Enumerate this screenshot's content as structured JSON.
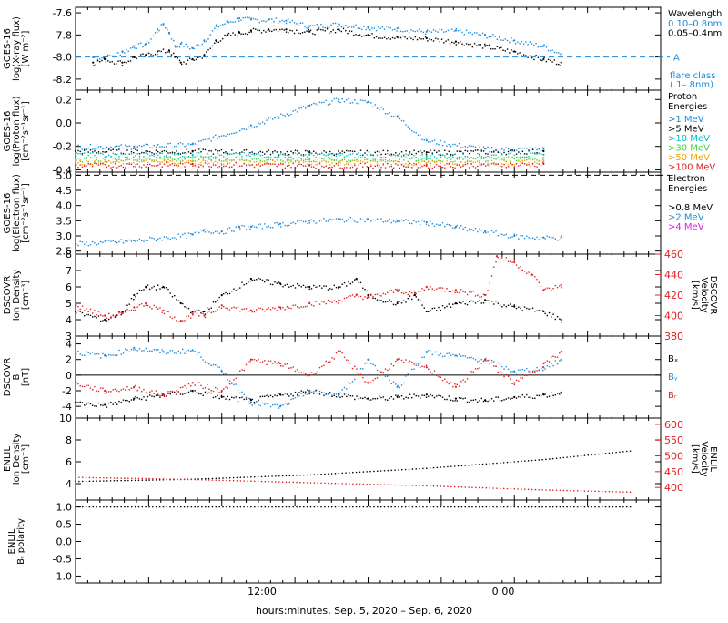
{
  "xaxis": {
    "ticks": [
      "12:00",
      "0:00"
    ],
    "label": "hours:minutes, Sep.  5, 2020 – Sep.  6, 2020"
  },
  "chart_data": [
    {
      "type": "scatter",
      "ylabel": [
        "GOES-16",
        "log(X-ray flux)",
        "[W m⁻²]"
      ],
      "ylim": [
        -8.3,
        -7.55
      ],
      "yticks": [
        -7.6,
        -7.8,
        -8.0,
        -8.2
      ],
      "ytick_labels": [
        "-7.6",
        "-7.8",
        "-8.0",
        "-8.2"
      ],
      "legend_title": "Wavelength",
      "series": [
        {
          "name": "0.10–0.8nm",
          "color": "#1f8ad6",
          "x": [
            3,
            5,
            8,
            10,
            12,
            14,
            15,
            16,
            17,
            18,
            20,
            22,
            24,
            26,
            28,
            30,
            33,
            36,
            40,
            45,
            50,
            55,
            60,
            65,
            70,
            75,
            80,
            83
          ],
          "y": [
            -8.0,
            -8.0,
            -7.95,
            -7.9,
            -7.88,
            -7.75,
            -7.7,
            -7.78,
            -7.9,
            -7.88,
            -7.92,
            -7.85,
            -7.72,
            -7.68,
            -7.65,
            -7.66,
            -7.66,
            -7.67,
            -7.72,
            -7.7,
            -7.73,
            -7.74,
            -7.77,
            -7.76,
            -7.8,
            -7.85,
            -7.9,
            -7.97
          ]
        },
        {
          "name": "0.05–0.4nm",
          "color": "#000000",
          "x": [
            3,
            5,
            8,
            10,
            12,
            14,
            16,
            17,
            18,
            20,
            22,
            24,
            26,
            28,
            30,
            33,
            36,
            40,
            45,
            50,
            55,
            60,
            65,
            70,
            75,
            80,
            83
          ],
          "y": [
            -8.05,
            -8.02,
            -8.05,
            -8.0,
            -7.98,
            -7.95,
            -7.94,
            -8.0,
            -8.05,
            -8.02,
            -7.98,
            -7.85,
            -7.8,
            -7.78,
            -7.76,
            -7.75,
            -7.75,
            -7.77,
            -7.75,
            -7.8,
            -7.82,
            -7.83,
            -7.86,
            -7.9,
            -7.95,
            -8.02,
            -8.05
          ]
        }
      ],
      "threshold": {
        "value": -8.0,
        "label": "A",
        "color": "#1f8ad6"
      },
      "note": [
        "flare class",
        "(.1–.8nm)"
      ]
    },
    {
      "type": "scatter",
      "ylabel": [
        "GOES-16",
        "log(Proton flux)",
        "[cm⁻²s⁻¹sr⁻¹]"
      ],
      "ylim": [
        -0.42,
        0.28
      ],
      "yticks": [
        0.2,
        0.0,
        -0.2,
        -0.4
      ],
      "ytick_labels": [
        "0.2",
        "0.0",
        "-0.2",
        "-0.4"
      ],
      "legend_title": "Proton Energies",
      "series": [
        {
          "name": ">1 MeV",
          "color": "#1f8ad6",
          "x": [
            0,
            10,
            20,
            30,
            40,
            45,
            50,
            55,
            60,
            70,
            80
          ],
          "y": [
            -0.2,
            -0.2,
            -0.18,
            -0.02,
            0.15,
            0.2,
            0.18,
            0.05,
            -0.15,
            -0.22,
            -0.22
          ]
        },
        {
          "name": ">5 MeV",
          "color": "#000000",
          "x": [
            0,
            20,
            40,
            60,
            80
          ],
          "y": [
            -0.24,
            -0.24,
            -0.25,
            -0.25,
            -0.24
          ]
        },
        {
          "name": ">10 MeV",
          "color": "#00c0c0",
          "x": [
            0,
            20,
            40,
            60,
            80
          ],
          "y": [
            -0.27,
            -0.27,
            -0.27,
            -0.28,
            -0.27
          ]
        },
        {
          "name": ">30 MeV",
          "color": "#40d040",
          "x": [
            0,
            20,
            40,
            60,
            80
          ],
          "y": [
            -0.31,
            -0.3,
            -0.31,
            -0.31,
            -0.3
          ]
        },
        {
          "name": ">50 MeV",
          "color": "#f0a000",
          "x": [
            0,
            20,
            40,
            60,
            80
          ],
          "y": [
            -0.33,
            -0.33,
            -0.33,
            -0.34,
            -0.33
          ]
        },
        {
          "name": ">100 MeV",
          "color": "#e02020",
          "x": [
            0,
            20,
            40,
            60,
            80
          ],
          "y": [
            -0.36,
            -0.35,
            -0.36,
            -0.36,
            -0.35
          ]
        }
      ]
    },
    {
      "type": "scatter",
      "ylabel": [
        "GOES-16",
        "log(Electron flux)",
        "[cm⁻²s⁻¹sr⁻¹]"
      ],
      "ylim": [
        2.4,
        5.1
      ],
      "yticks": [
        5.0,
        4.5,
        4.0,
        3.5,
        3.0,
        2.5
      ],
      "ytick_labels": [
        "5.0",
        "4.5",
        "4.0",
        "3.5",
        "3.0",
        "2.5"
      ],
      "legend_title": "Electron Energies",
      "series": [
        {
          "name": ">0.8 MeV",
          "color": "#000000",
          "x": [],
          "y": []
        },
        {
          "name": ">2 MeV",
          "color": "#1f8ad6",
          "x": [
            0,
            10,
            20,
            22,
            25,
            28,
            30,
            35,
            40,
            45,
            50,
            55,
            60,
            65,
            70,
            75,
            80,
            83
          ],
          "y": [
            2.75,
            2.85,
            3.05,
            3.2,
            3.15,
            3.3,
            3.3,
            3.4,
            3.5,
            3.55,
            3.55,
            3.5,
            3.45,
            3.3,
            3.15,
            3.0,
            2.95,
            2.95
          ]
        },
        {
          "name": ">4 MeV",
          "color": "#e020e0",
          "x": [],
          "y": []
        }
      ],
      "threshold": {
        "value": 5.0,
        "color": "#000000"
      }
    },
    {
      "type": "scatter",
      "ylabel": [
        "DSCOVR",
        "Ion Density",
        "[cm⁻³]"
      ],
      "ylabel_right": [
        "DSCOVR",
        "Velocity",
        "[km/s]"
      ],
      "ylim": [
        3,
        8
      ],
      "yticks": [
        8,
        7,
        6,
        5,
        4,
        3
      ],
      "ytick_labels": [
        "8",
        "7",
        "6",
        "5",
        "4",
        "3"
      ],
      "ylim_right": [
        380,
        460
      ],
      "yticks_right": [
        460,
        440,
        420,
        400,
        380
      ],
      "ytick_labels_right": [
        "460",
        "440",
        "420",
        "400",
        "380"
      ],
      "series": [
        {
          "name": "Density",
          "color": "#000000",
          "axis": "left",
          "x": [
            0,
            5,
            8,
            10,
            12,
            15,
            18,
            20,
            22,
            25,
            30,
            35,
            40,
            45,
            48,
            50,
            55,
            58,
            60,
            65,
            70,
            75,
            80,
            83
          ],
          "y": [
            4.5,
            4.0,
            4.5,
            5.5,
            6.0,
            6.0,
            5.0,
            4.5,
            4.5,
            5.5,
            6.5,
            6.2,
            6.0,
            6.0,
            6.5,
            5.5,
            5.0,
            5.5,
            4.5,
            5.0,
            5.2,
            4.8,
            4.5,
            4.0
          ]
        },
        {
          "name": "Velocity",
          "color": "#e02020",
          "axis": "right",
          "x": [
            0,
            5,
            8,
            10,
            12,
            15,
            18,
            20,
            22,
            25,
            30,
            35,
            40,
            45,
            48,
            50,
            55,
            58,
            60,
            65,
            70,
            72,
            75,
            78,
            80,
            83
          ],
          "y": [
            410,
            400,
            402,
            408,
            412,
            405,
            395,
            402,
            400,
            410,
            405,
            408,
            412,
            415,
            420,
            418,
            425,
            422,
            428,
            425,
            420,
            458,
            452,
            440,
            425,
            430
          ]
        }
      ]
    },
    {
      "type": "scatter",
      "ylabel": [
        "DSCOVR",
        "B",
        "[nT]"
      ],
      "ylim": [
        -5.5,
        5
      ],
      "yticks": [
        4,
        2,
        0,
        -2,
        -4
      ],
      "ytick_labels": [
        "4",
        "2",
        "0",
        "-2",
        "-4"
      ],
      "zero_line": 0,
      "series": [
        {
          "name": "Bₓ",
          "color": "#000000",
          "x": [
            0,
            5,
            10,
            15,
            20,
            25,
            30,
            35,
            40,
            45,
            50,
            55,
            60,
            65,
            70,
            75,
            80,
            83
          ],
          "y": [
            -3.5,
            -3.8,
            -3.0,
            -2.5,
            -2.0,
            -2.8,
            -3.2,
            -2.5,
            -2.0,
            -2.5,
            -3.0,
            -2.8,
            -2.5,
            -3.0,
            -3.2,
            -2.8,
            -2.5,
            -2.2
          ]
        },
        {
          "name": "Bᵧ",
          "color": "#1f8ad6",
          "x": [
            0,
            5,
            10,
            15,
            20,
            25,
            30,
            35,
            40,
            45,
            50,
            55,
            60,
            65,
            70,
            75,
            80,
            83
          ],
          "y": [
            3.0,
            2.5,
            3.5,
            3.0,
            3.2,
            0.5,
            -3.5,
            -4.0,
            -2.0,
            -2.5,
            2.0,
            -1.5,
            3.0,
            2.5,
            2.0,
            0.5,
            1.0,
            2.0
          ]
        },
        {
          "name": "Bᵣ",
          "color": "#e02020",
          "x": [
            0,
            5,
            10,
            15,
            20,
            25,
            30,
            35,
            40,
            45,
            50,
            55,
            60,
            65,
            70,
            75,
            80,
            83
          ],
          "y": [
            -1.0,
            -2.0,
            -1.5,
            -2.5,
            -1.0,
            -2.0,
            2.0,
            1.5,
            0.0,
            3.0,
            -1.0,
            2.0,
            1.0,
            -1.5,
            2.0,
            -1.0,
            1.5,
            3.0
          ]
        }
      ],
      "legend": [
        "Bₓ",
        "Bᵧ",
        "Bᵣ"
      ]
    },
    {
      "type": "line",
      "ylabel": [
        "ENLIL",
        "Ion Density",
        "[cm⁻³]"
      ],
      "ylabel_right": [
        "ENLIL",
        "Velocity",
        "[km/s]"
      ],
      "ylim": [
        2.5,
        10
      ],
      "yticks": [
        10,
        8,
        6,
        4
      ],
      "ytick_labels": [
        "10",
        "8",
        "6",
        "4"
      ],
      "ylim_right": [
        360,
        620
      ],
      "yticks_right": [
        600,
        550,
        500,
        450,
        400
      ],
      "ytick_labels_right": [
        "600",
        "550",
        "500",
        "450",
        "400"
      ],
      "series": [
        {
          "name": "Density",
          "color": "#000000",
          "axis": "left",
          "x": [
            0,
            20,
            40,
            60,
            80,
            95
          ],
          "y": [
            4.2,
            4.4,
            4.8,
            5.4,
            6.2,
            7.0
          ]
        },
        {
          "name": "Velocity",
          "color": "#e02020",
          "axis": "right",
          "x": [
            0,
            20,
            40,
            60,
            80,
            95
          ],
          "y": [
            432,
            425,
            415,
            405,
            392,
            385
          ]
        }
      ]
    },
    {
      "type": "line",
      "ylabel": [
        "ENLIL",
        "Bᵣ polarity"
      ],
      "ylim": [
        -1.2,
        1.2
      ],
      "yticks": [
        1.0,
        0.5,
        0.0,
        -0.5,
        -1.0
      ],
      "ytick_labels": [
        "1.0",
        "0.5",
        "0.0",
        "-0.5",
        "-1.0"
      ],
      "series": [
        {
          "name": "Polarity",
          "color": "#000000",
          "x": [
            0,
            95
          ],
          "y": [
            1.0,
            1.0
          ]
        }
      ]
    }
  ]
}
